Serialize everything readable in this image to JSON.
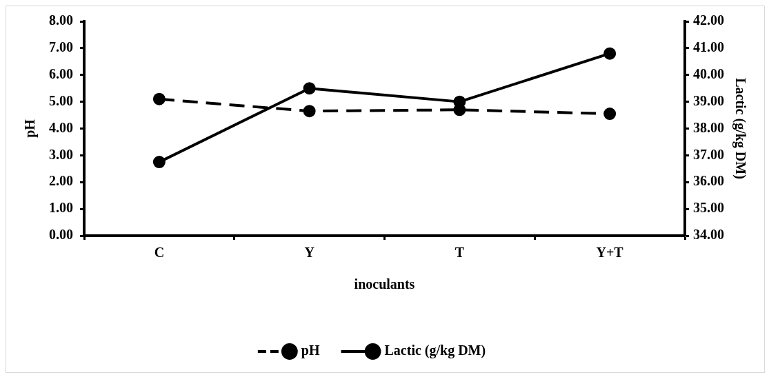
{
  "chart_data": {
    "type": "line",
    "xlabel": "inoculants",
    "ylabel": "pH",
    "y2label": "Lactic (g/kg DM)",
    "categories": [
      "C",
      "Y",
      "T",
      "Y+T"
    ],
    "series": [
      {
        "name": "pH",
        "color": "#000000",
        "values": [
          5.1,
          4.65,
          4.7,
          4.55
        ],
        "line_style": "dashed"
      },
      {
        "name": "Lactic (g/kg DM)",
        "color": "#000000",
        "values": [
          36.75,
          39.5,
          39.0,
          40.8
        ],
        "axis": "y2",
        "line_style": "solid"
      }
    ],
    "ylim": [
      0,
      8
    ],
    "yticks": [
      {
        "value": 0,
        "label": "0.00"
      },
      {
        "value": 1,
        "label": "1.00"
      },
      {
        "value": 2,
        "label": "2.00"
      },
      {
        "value": 3,
        "label": "3.00"
      },
      {
        "value": 4,
        "label": "4.00"
      },
      {
        "value": 5,
        "label": "5.00"
      },
      {
        "value": 6,
        "label": "6.00"
      },
      {
        "value": 7,
        "label": "7.00"
      },
      {
        "value": 8,
        "label": "8.00"
      }
    ],
    "y2lim": [
      34,
      42
    ],
    "y2ticks": [
      {
        "value": 34,
        "label": "34.00"
      },
      {
        "value": 35,
        "label": "35.00"
      },
      {
        "value": 36,
        "label": "36.00"
      },
      {
        "value": 37,
        "label": "37.00"
      },
      {
        "value": 38,
        "label": "38.00"
      },
      {
        "value": 39,
        "label": "39.00"
      },
      {
        "value": 40,
        "label": "40.00"
      },
      {
        "value": 41,
        "label": "41.00"
      },
      {
        "value": 42,
        "label": "42.00"
      }
    ],
    "legend": "bottom",
    "marker": "circle"
  }
}
